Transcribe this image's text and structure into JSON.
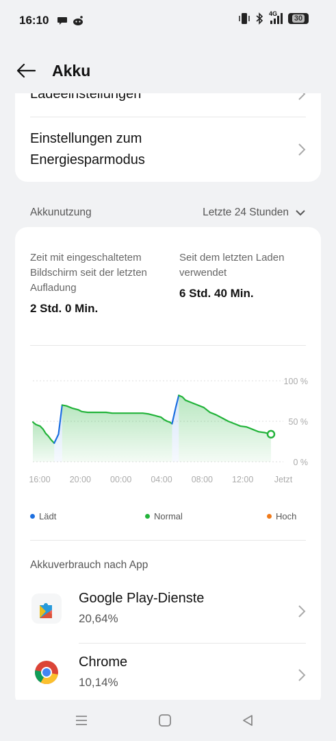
{
  "status_bar": {
    "time": "16:10",
    "network": "4G",
    "battery_level": "30",
    "left_icons": [
      "chat-icon",
      "reddit-icon"
    ],
    "right_icons": [
      "vibrate-icon",
      "bluetooth-icon",
      "signal-icon",
      "battery-icon"
    ]
  },
  "app_bar": {
    "title": "Akku",
    "back_icon": "arrow-left-icon"
  },
  "settings": {
    "items": [
      {
        "label": "Ladeeinstellungen"
      },
      {
        "label_line1": "Einstellungen zum",
        "label_line2": "Energiesparmodus"
      }
    ]
  },
  "usage": {
    "section_label": "Akkunutzung",
    "period": "Letzte 24 Stunden",
    "screen_on_label": "Zeit mit eingeschaltetem Bildschirm seit der letzten Aufladung",
    "screen_on_value": "2 Std. 0 Min.",
    "since_charge_label": "Seit dem letzten Laden verwendet",
    "since_charge_value": "6 Std. 40 Min."
  },
  "chart_data": {
    "type": "area",
    "x_labels": [
      "16:00",
      "20:00",
      "00:00",
      "04:00",
      "08:00",
      "12:00",
      "Jetzt"
    ],
    "y_labels": [
      "100 %",
      "50 %",
      "0 %"
    ],
    "ylim": [
      0,
      100
    ],
    "grid": true,
    "series": [
      {
        "name": "Normal",
        "color": "#22b33a",
        "points": [
          [
            0,
            49
          ],
          [
            0.5,
            46
          ],
          [
            1.2,
            44
          ],
          [
            1.7,
            40
          ],
          [
            2.1,
            35
          ],
          [
            2.5,
            32
          ],
          [
            3.0,
            27
          ],
          [
            3.5,
            23
          ]
        ]
      },
      {
        "name": "Lädt",
        "color": "#1c6fe0",
        "points": [
          [
            3.5,
            23
          ],
          [
            4.2,
            34
          ],
          [
            4.8,
            70
          ]
        ]
      },
      {
        "name": "Normal",
        "color": "#22b33a",
        "points": [
          [
            4.8,
            70
          ],
          [
            5.5,
            69
          ],
          [
            6.5,
            66
          ],
          [
            7.5,
            64
          ],
          [
            8.0,
            62
          ],
          [
            9.0,
            61
          ],
          [
            10.0,
            61
          ],
          [
            11.0,
            61
          ],
          [
            12.0,
            61
          ],
          [
            13.0,
            60
          ],
          [
            14.0,
            60
          ],
          [
            15.0,
            60
          ],
          [
            16.0,
            60
          ],
          [
            17.0,
            60
          ],
          [
            18.0,
            60
          ],
          [
            19.0,
            59
          ],
          [
            20.0,
            57
          ],
          [
            20.5,
            56
          ],
          [
            21.0,
            55
          ],
          [
            21.5,
            52
          ],
          [
            22.0,
            50
          ],
          [
            22.4,
            49
          ],
          [
            22.8,
            47
          ]
        ]
      },
      {
        "name": "Lädt",
        "color": "#1c6fe0",
        "points": [
          [
            22.8,
            47
          ],
          [
            23.4,
            67
          ],
          [
            23.9,
            82
          ]
        ]
      },
      {
        "name": "Normal",
        "color": "#22b33a",
        "points": [
          [
            23.9,
            82
          ],
          [
            24.5,
            80
          ],
          [
            25.0,
            76
          ],
          [
            26.0,
            73
          ],
          [
            27.0,
            70
          ],
          [
            28.0,
            67
          ],
          [
            29.0,
            61
          ],
          [
            30.0,
            58
          ],
          [
            31.0,
            54
          ],
          [
            32.0,
            50
          ],
          [
            33.0,
            47
          ],
          [
            34.0,
            44
          ],
          [
            35.0,
            43
          ],
          [
            36.0,
            40
          ],
          [
            37.0,
            37
          ],
          [
            38.0,
            36
          ],
          [
            39.0,
            34
          ]
        ]
      }
    ],
    "x_range": [
      0,
      39
    ],
    "legend": [
      {
        "label": "Lädt",
        "color": "#1c6fe0"
      },
      {
        "label": "Normal",
        "color": "#22b33a"
      },
      {
        "label": "Hoch",
        "color": "#f07a1a"
      }
    ]
  },
  "app_usage": {
    "title": "Akkuverbrauch nach App",
    "apps": [
      {
        "name": "Google Play-Dienste",
        "percent": "20,64%",
        "icon": "google-play-services-icon"
      },
      {
        "name": "Chrome",
        "percent": "10,14%",
        "icon": "chrome-icon"
      }
    ]
  },
  "nav_bar": {
    "buttons": [
      "menu-icon",
      "home-icon",
      "back-triangle-icon"
    ]
  }
}
